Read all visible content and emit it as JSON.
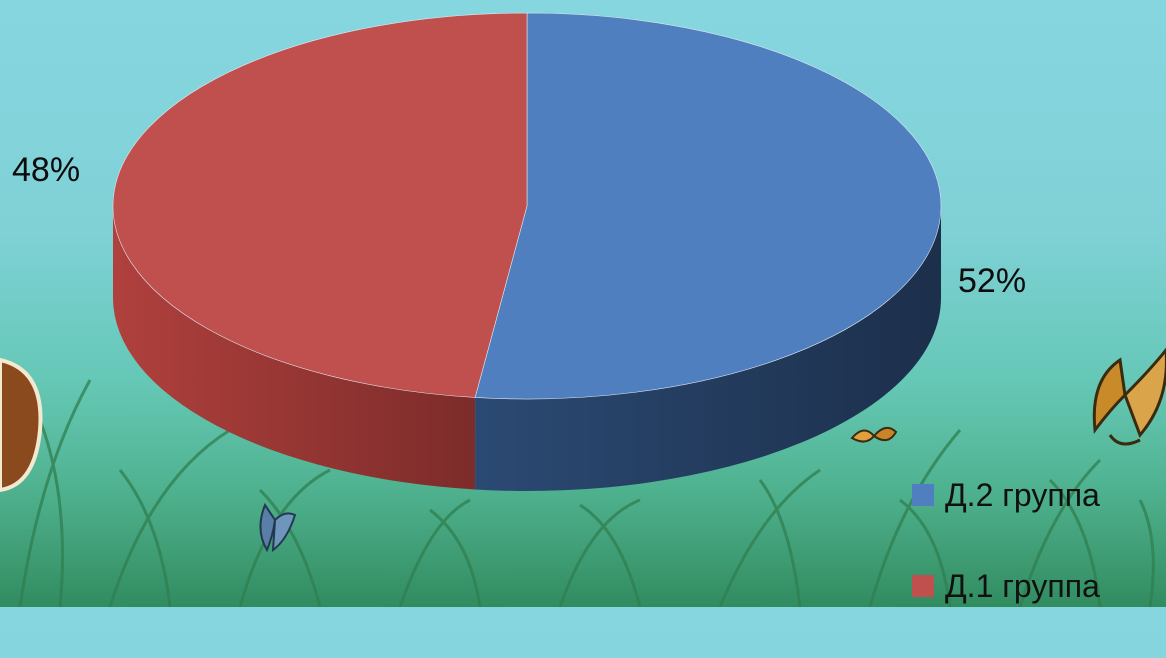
{
  "chart_data": {
    "type": "pie",
    "title": "",
    "labels": [
      "Д.2 группа",
      "Д.1 группа"
    ],
    "values": [
      52,
      48
    ],
    "value_labels": [
      "52%",
      "48%"
    ],
    "colors": [
      "#4f7fbf",
      "#c0504d"
    ],
    "legend_placement": "bottom-right"
  }
}
